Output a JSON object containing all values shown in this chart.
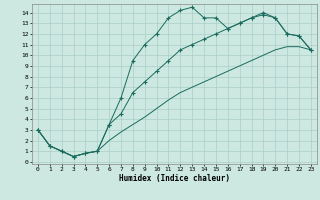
{
  "xlabel": "Humidex (Indice chaleur)",
  "bg_color": "#cce8e0",
  "grid_color": "#aacfc8",
  "line_color": "#1a6b5e",
  "xlim": [
    -0.5,
    23.5
  ],
  "ylim": [
    -0.2,
    14.8
  ],
  "xtick_labels": [
    "0",
    "1",
    "2",
    "3",
    "4",
    "5",
    "6",
    "7",
    "8",
    "9",
    "10",
    "11",
    "12",
    "13",
    "14",
    "15",
    "16",
    "17",
    "18",
    "19",
    "20",
    "21",
    "22",
    "23"
  ],
  "ytick_labels": [
    "0",
    "1",
    "2",
    "3",
    "4",
    "5",
    "6",
    "7",
    "8",
    "9",
    "10",
    "11",
    "12",
    "13",
    "14"
  ],
  "line1_x": [
    0,
    1,
    2,
    3,
    4,
    5,
    6,
    7,
    8,
    9,
    10,
    11,
    12,
    13,
    14,
    15,
    16,
    17,
    18,
    19,
    20,
    21,
    22,
    23
  ],
  "line1_y": [
    3,
    1.5,
    1,
    0.5,
    0.8,
    1.0,
    3.5,
    6.0,
    9.5,
    11.0,
    12.0,
    13.5,
    14.2,
    14.5,
    13.5,
    13.5,
    12.5,
    13.0,
    13.5,
    14.0,
    13.5,
    12.0,
    11.8,
    10.5
  ],
  "line2_x": [
    0,
    1,
    2,
    3,
    4,
    5,
    6,
    7,
    8,
    9,
    10,
    11,
    12,
    13,
    14,
    15,
    16,
    17,
    18,
    19,
    20,
    21,
    22,
    23
  ],
  "line2_y": [
    3,
    1.5,
    1,
    0.5,
    0.8,
    1.0,
    3.5,
    4.5,
    6.5,
    7.5,
    8.5,
    9.5,
    10.5,
    11.0,
    11.5,
    12.0,
    12.5,
    13.0,
    13.5,
    13.8,
    13.5,
    12.0,
    11.8,
    10.5
  ],
  "line3_x": [
    0,
    1,
    2,
    3,
    4,
    5,
    6,
    7,
    8,
    9,
    10,
    11,
    12,
    13,
    14,
    15,
    16,
    17,
    18,
    19,
    20,
    21,
    22,
    23
  ],
  "line3_y": [
    3,
    1.5,
    1,
    0.5,
    0.8,
    1.0,
    2.0,
    2.8,
    3.5,
    4.2,
    5.0,
    5.8,
    6.5,
    7.0,
    7.5,
    8.0,
    8.5,
    9.0,
    9.5,
    10.0,
    10.5,
    10.8,
    10.8,
    10.5
  ]
}
